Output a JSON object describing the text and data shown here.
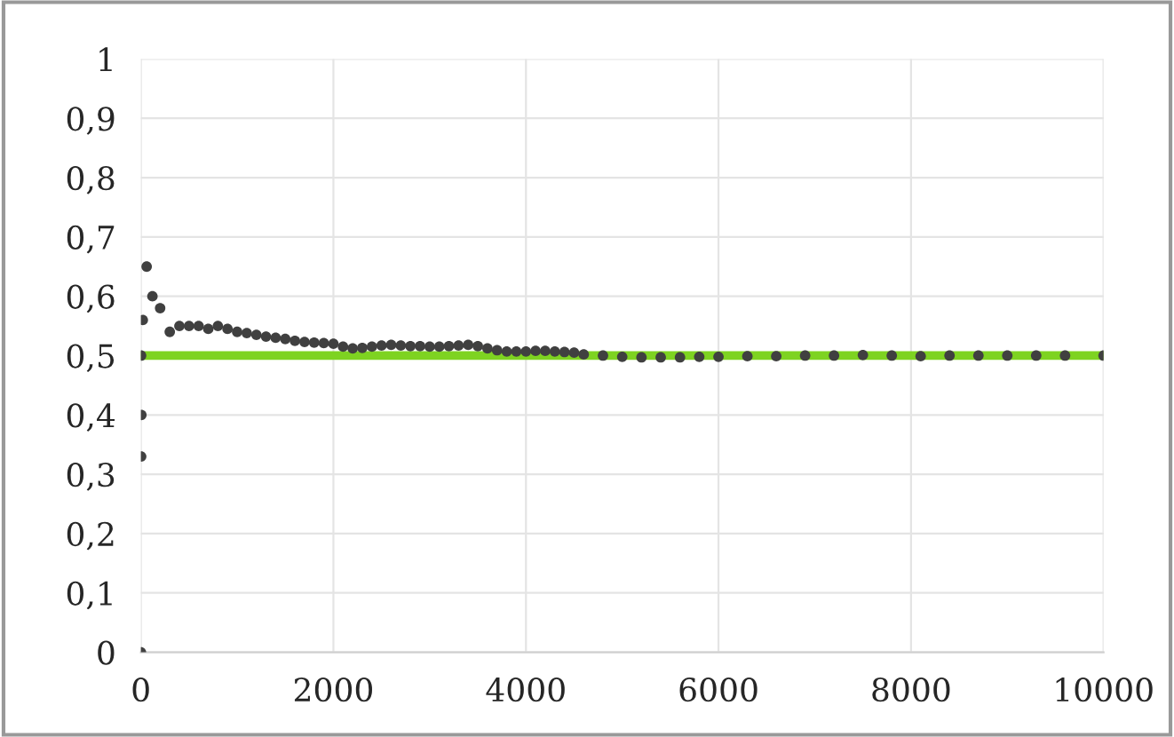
{
  "chart_data": {
    "type": "scatter",
    "marker": "circle",
    "grid": true,
    "legend": false,
    "xlim": [
      0,
      10000
    ],
    "xticks": [
      0,
      2000,
      4000,
      6000,
      8000,
      10000
    ],
    "ylim": [
      0,
      1
    ],
    "yticks": [
      {
        "value": 0,
        "label": "0"
      },
      {
        "value": 0.1,
        "label": "0,1"
      },
      {
        "value": 0.2,
        "label": "0,2"
      },
      {
        "value": 0.3,
        "label": "0,3"
      },
      {
        "value": 0.4,
        "label": "0,4"
      },
      {
        "value": 0.5,
        "label": "0,5"
      },
      {
        "value": 0.6,
        "label": "0,6"
      },
      {
        "value": 0.7,
        "label": "0,7"
      },
      {
        "value": 0.8,
        "label": "0,8"
      },
      {
        "value": 0.9,
        "label": "0,9"
      },
      {
        "value": 1,
        "label": "1"
      }
    ],
    "series": [
      {
        "type": "line",
        "marker": "none",
        "color": "#7ed321",
        "x": [
          0,
          10000
        ],
        "values": [
          0.5,
          0.5
        ]
      },
      {
        "color": "#404040",
        "x": [
          1,
          2,
          3,
          5,
          20,
          60,
          120,
          200,
          300,
          400,
          500,
          600,
          700,
          800,
          900,
          1000,
          1100,
          1200,
          1300,
          1400,
          1500,
          1600,
          1700,
          1800,
          1900,
          2000,
          2100,
          2200,
          2300,
          2400,
          2500,
          2600,
          2700,
          2800,
          2900,
          3000,
          3100,
          3200,
          3300,
          3400,
          3500,
          3600,
          3700,
          3800,
          3900,
          4000,
          4100,
          4200,
          4300,
          4400,
          4500,
          4600,
          4800,
          5000,
          5200,
          5400,
          5600,
          5800,
          6000,
          6300,
          6600,
          6900,
          7200,
          7500,
          7800,
          8100,
          8400,
          8700,
          9000,
          9300,
          9600,
          10000
        ],
        "values": [
          0,
          0.5,
          0.33,
          0.4,
          0.56,
          0.65,
          0.6,
          0.58,
          0.54,
          0.55,
          0.55,
          0.55,
          0.545,
          0.55,
          0.545,
          0.54,
          0.538,
          0.535,
          0.532,
          0.53,
          0.528,
          0.525,
          0.523,
          0.522,
          0.521,
          0.52,
          0.515,
          0.512,
          0.513,
          0.515,
          0.517,
          0.518,
          0.517,
          0.516,
          0.516,
          0.515,
          0.515,
          0.516,
          0.517,
          0.518,
          0.516,
          0.512,
          0.509,
          0.507,
          0.507,
          0.507,
          0.508,
          0.508,
          0.507,
          0.506,
          0.505,
          0.502,
          0.5,
          0.498,
          0.497,
          0.497,
          0.497,
          0.498,
          0.498,
          0.499,
          0.499,
          0.5,
          0.5,
          0.501,
          0.5,
          0.499,
          0.5,
          0.5,
          0.5,
          0.5,
          0.5,
          0.5
        ]
      }
    ]
  }
}
